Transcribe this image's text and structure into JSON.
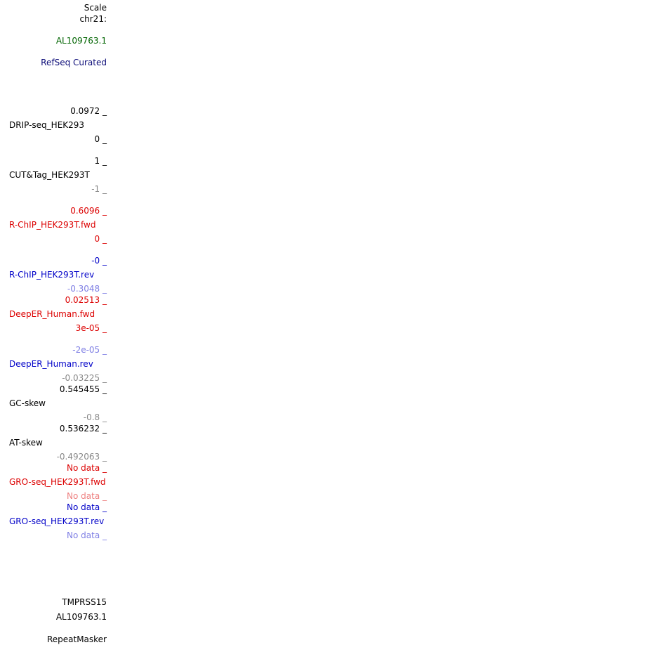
{
  "colors": {
    "black": "#000000",
    "green": "#006400",
    "navy": "#0c0c78",
    "red": "#dc0000",
    "blue": "#0000c8",
    "gray": "#888888",
    "light_red": "#ee8080",
    "light_blue": "#7f7fe4"
  },
  "header": {
    "scale": "Scale",
    "chrom": "chr21:"
  },
  "tracks": {
    "gencode_label": "AL109763.1",
    "refseq_label": "RefSeq Curated",
    "drip": {
      "max": "0.0972 _",
      "name": "DRIP-seq_HEK293",
      "min": "0 _"
    },
    "cuttag": {
      "max": "1 _",
      "name": "CUT&Tag_HEK293T",
      "min": "-1 _"
    },
    "rchip_fwd": {
      "max": "0.6096 _",
      "name": "R-ChIP_HEK293T.fwd",
      "min": "0 _"
    },
    "rchip_rev": {
      "max": "-0 _",
      "name": "R-ChIP_HEK293T.rev",
      "min": "-0.3048 _"
    },
    "deeper_fwd": {
      "max": "0.02513 _",
      "name": "DeepER_Human.fwd",
      "min": "3e-05 _"
    },
    "deeper_rev": {
      "max": "-2e-05 _",
      "name": "DeepER_Human.rev",
      "min": "-0.03225 _"
    },
    "gc_skew": {
      "max": "0.545455 _",
      "name": "GC-skew",
      "min": "-0.8 _"
    },
    "at_skew": {
      "max": "0.536232 _",
      "name": "AT-skew",
      "min": "-0.492063 _"
    },
    "gro_fwd": {
      "max": "No data _",
      "name": "GRO-seq_HEK293T.fwd",
      "min": "No data _"
    },
    "gro_rev": {
      "max": "No data _",
      "name": "GRO-seq_HEK293T.rev",
      "min": "No data _"
    },
    "tmprss15_label": "TMPRSS15",
    "al_label_2": "AL109763.1",
    "repeatmasker_label": "RepeatMasker"
  }
}
